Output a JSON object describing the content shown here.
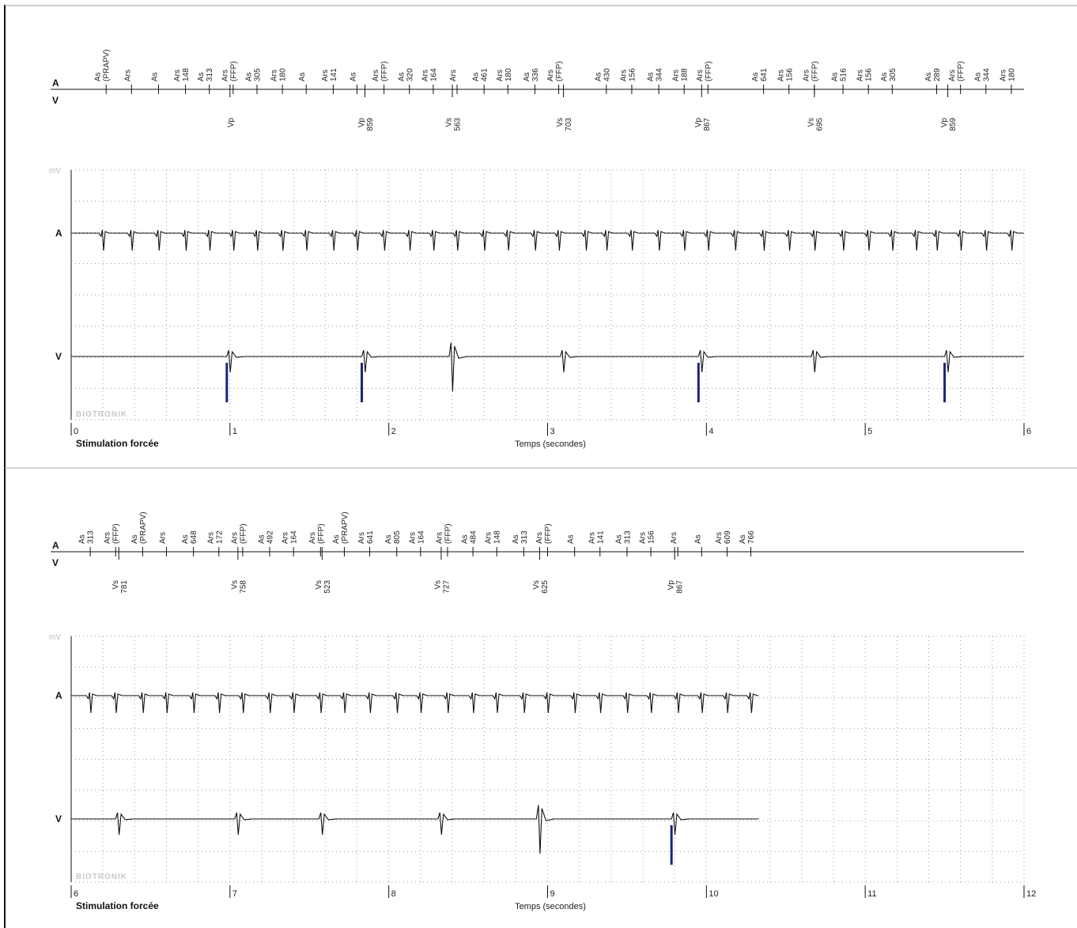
{
  "chart_data": [
    {
      "type": "line",
      "title": "Stimulation forcée",
      "xlabel": "Temps (secondes)",
      "xlim": [
        0,
        6
      ],
      "x_ticks": [
        "0",
        "1",
        "2",
        "3",
        "4",
        "5",
        "6"
      ],
      "channels": [
        "A",
        "V"
      ],
      "y_unit": "mV",
      "watermark": "BIOTRONIK",
      "grid": true,
      "atrial_markers": [
        {
          "t": 0.22,
          "lines": [
            "As",
            "(PRAPV)"
          ]
        },
        {
          "t": 0.38,
          "lines": [
            "Ars"
          ]
        },
        {
          "t": 0.55,
          "lines": [
            "As"
          ]
        },
        {
          "t": 0.72,
          "lines": [
            "Ars",
            "148"
          ]
        },
        {
          "t": 0.87,
          "lines": [
            "As",
            "313"
          ]
        },
        {
          "t": 1.02,
          "lines": [
            "Ars",
            "(FFP)"
          ]
        },
        {
          "t": 1.17,
          "lines": [
            "As",
            "305"
          ]
        },
        {
          "t": 1.33,
          "lines": [
            "Ars",
            "180"
          ]
        },
        {
          "t": 1.48,
          "lines": [
            "As"
          ]
        },
        {
          "t": 1.65,
          "lines": [
            "Ars",
            "141"
          ]
        },
        {
          "t": 1.8,
          "lines": [
            "As"
          ]
        },
        {
          "t": 1.97,
          "lines": [
            "Ars",
            "(FFP)"
          ]
        },
        {
          "t": 2.13,
          "lines": [
            "As",
            "320"
          ]
        },
        {
          "t": 2.28,
          "lines": [
            "Ars",
            "164"
          ]
        },
        {
          "t": 2.43,
          "lines": [
            "Ars"
          ]
        },
        {
          "t": 2.6,
          "lines": [
            "As",
            "461"
          ]
        },
        {
          "t": 2.75,
          "lines": [
            "Ars",
            "180"
          ]
        },
        {
          "t": 2.92,
          "lines": [
            "As",
            "336"
          ]
        },
        {
          "t": 3.07,
          "lines": [
            "Ars",
            "(FFP)"
          ]
        },
        {
          "t": 3.37,
          "lines": [
            "As",
            "430"
          ]
        },
        {
          "t": 3.53,
          "lines": [
            "Ars",
            "156"
          ]
        },
        {
          "t": 3.7,
          "lines": [
            "As",
            "344"
          ]
        },
        {
          "t": 3.86,
          "lines": [
            "Ars",
            "188"
          ]
        },
        {
          "t": 4.01,
          "lines": [
            "Ars",
            "(FFP)"
          ]
        },
        {
          "t": 4.36,
          "lines": [
            "As",
            "641"
          ]
        },
        {
          "t": 4.52,
          "lines": [
            "Ars",
            "156"
          ]
        },
        {
          "t": 4.68,
          "lines": [
            "Ars",
            "(FFP)"
          ]
        },
        {
          "t": 4.86,
          "lines": [
            "As",
            "516"
          ]
        },
        {
          "t": 5.02,
          "lines": [
            "Ars",
            "156"
          ]
        },
        {
          "t": 5.17,
          "lines": [
            "As",
            "305"
          ]
        },
        {
          "t": 5.45,
          "lines": [
            "As",
            "289"
          ]
        },
        {
          "t": 5.6,
          "lines": [
            "Ars",
            "(FFP)"
          ]
        },
        {
          "t": 5.76,
          "lines": [
            "As",
            "344"
          ]
        },
        {
          "t": 5.92,
          "lines": [
            "Ars",
            "180"
          ]
        }
      ],
      "ventricular_markers": [
        {
          "t": 1.0,
          "lines": [
            "Vp"
          ]
        },
        {
          "t": 1.85,
          "lines": [
            "Vp",
            "859"
          ]
        },
        {
          "t": 2.4,
          "lines": [
            "Vs",
            "563"
          ]
        },
        {
          "t": 3.1,
          "lines": [
            "Vs",
            "703"
          ]
        },
        {
          "t": 3.97,
          "lines": [
            "Vp",
            "867"
          ]
        },
        {
          "t": 4.68,
          "lines": [
            "Vs",
            "695"
          ]
        },
        {
          "t": 5.52,
          "lines": [
            "Vp",
            "859"
          ]
        }
      ],
      "atrial_beats": [
        0.2,
        0.38,
        0.55,
        0.72,
        0.87,
        1.02,
        1.17,
        1.33,
        1.48,
        1.65,
        1.8,
        1.97,
        2.13,
        2.28,
        2.43,
        2.6,
        2.75,
        2.92,
        3.07,
        3.24,
        3.37,
        3.53,
        3.7,
        3.86,
        4.01,
        4.18,
        4.36,
        4.52,
        4.68,
        4.86,
        5.02,
        5.17,
        5.32,
        5.45,
        5.6,
        5.76,
        5.92
      ],
      "ventricular_beats": [
        {
          "t": 1.0,
          "paced": true
        },
        {
          "t": 1.85,
          "paced": true
        },
        {
          "t": 2.4,
          "paced": false
        },
        {
          "t": 3.1,
          "paced": false
        },
        {
          "t": 3.97,
          "paced": true
        },
        {
          "t": 4.68,
          "paced": false
        },
        {
          "t": 5.52,
          "paced": true
        }
      ],
      "pace_color": "#1a237e"
    },
    {
      "type": "line",
      "title": "Stimulation forcée",
      "xlabel": "Temps (secondes)",
      "xlim": [
        6,
        12
      ],
      "x_ticks": [
        "6",
        "7",
        "8",
        "9",
        "10",
        "11",
        "12"
      ],
      "channels": [
        "A",
        "V"
      ],
      "y_unit": "mV",
      "watermark": "BIOTRONIK",
      "grid": true,
      "trace_end": 10.33,
      "atrial_markers": [
        {
          "t": 6.12,
          "lines": [
            "As",
            "313"
          ]
        },
        {
          "t": 6.28,
          "lines": [
            "Ars",
            "(FFP)"
          ]
        },
        {
          "t": 6.45,
          "lines": [
            "As",
            "(PRAPV)"
          ]
        },
        {
          "t": 6.6,
          "lines": [
            "Ars"
          ]
        },
        {
          "t": 6.77,
          "lines": [
            "As",
            "648"
          ]
        },
        {
          "t": 6.93,
          "lines": [
            "Ars",
            "172"
          ]
        },
        {
          "t": 7.08,
          "lines": [
            "Ars",
            "(FFP)"
          ]
        },
        {
          "t": 7.25,
          "lines": [
            "As",
            "492"
          ]
        },
        {
          "t": 7.4,
          "lines": [
            "Ars",
            "164"
          ]
        },
        {
          "t": 7.57,
          "lines": [
            "Ars",
            "(FFP)"
          ]
        },
        {
          "t": 7.72,
          "lines": [
            "As",
            "(PRAPV)"
          ]
        },
        {
          "t": 7.88,
          "lines": [
            "Ars",
            "641"
          ]
        },
        {
          "t": 8.05,
          "lines": [
            "As",
            "805"
          ]
        },
        {
          "t": 8.2,
          "lines": [
            "Ars",
            "164"
          ]
        },
        {
          "t": 8.37,
          "lines": [
            "Ars",
            "(FFP)"
          ]
        },
        {
          "t": 8.53,
          "lines": [
            "As",
            "484"
          ]
        },
        {
          "t": 8.68,
          "lines": [
            "Ars",
            "148"
          ]
        },
        {
          "t": 8.85,
          "lines": [
            "As",
            "313"
          ]
        },
        {
          "t": 9.0,
          "lines": [
            "Ars",
            "(FFP)"
          ]
        },
        {
          "t": 9.17,
          "lines": [
            "As"
          ]
        },
        {
          "t": 9.33,
          "lines": [
            "Ars",
            "141"
          ]
        },
        {
          "t": 9.5,
          "lines": [
            "As",
            "313"
          ]
        },
        {
          "t": 9.65,
          "lines": [
            "Ars",
            "156"
          ]
        },
        {
          "t": 9.82,
          "lines": [
            "Ars"
          ]
        },
        {
          "t": 9.97,
          "lines": [
            "As"
          ]
        },
        {
          "t": 10.13,
          "lines": [
            "Ars",
            "609"
          ]
        },
        {
          "t": 10.28,
          "lines": [
            "As",
            "766"
          ]
        }
      ],
      "ventricular_markers": [
        {
          "t": 6.3,
          "lines": [
            "Vs",
            "781"
          ]
        },
        {
          "t": 7.05,
          "lines": [
            "Vs",
            "758"
          ]
        },
        {
          "t": 7.58,
          "lines": [
            "Vs",
            "523"
          ]
        },
        {
          "t": 8.33,
          "lines": [
            "Vs",
            "727"
          ]
        },
        {
          "t": 8.95,
          "lines": [
            "Vs",
            "625"
          ]
        },
        {
          "t": 9.8,
          "lines": [
            "Vp",
            "867"
          ]
        }
      ],
      "atrial_beats": [
        6.12,
        6.28,
        6.45,
        6.6,
        6.77,
        6.93,
        7.08,
        7.25,
        7.4,
        7.57,
        7.72,
        7.88,
        8.05,
        8.2,
        8.37,
        8.53,
        8.68,
        8.85,
        9.0,
        9.17,
        9.33,
        9.5,
        9.65,
        9.82,
        9.97,
        10.13,
        10.28
      ],
      "ventricular_beats": [
        {
          "t": 6.3,
          "paced": false
        },
        {
          "t": 7.05,
          "paced": false
        },
        {
          "t": 7.58,
          "paced": false
        },
        {
          "t": 8.33,
          "paced": false
        },
        {
          "t": 8.95,
          "paced": false
        },
        {
          "t": 9.8,
          "paced": true
        }
      ],
      "pace_color": "#1a237e"
    }
  ]
}
